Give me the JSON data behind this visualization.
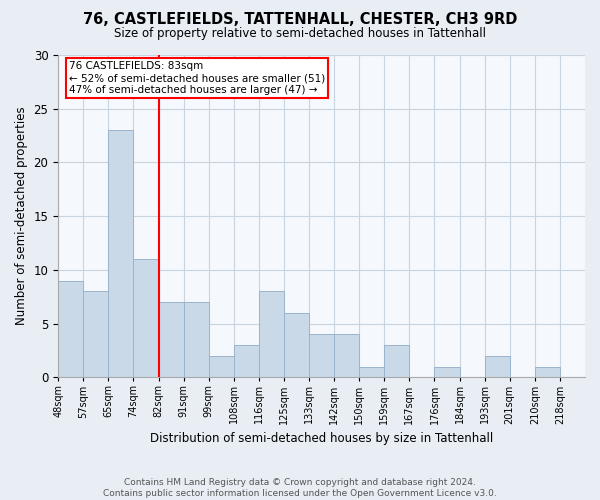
{
  "title": "76, CASTLEFIELDS, TATTENHALL, CHESTER, CH3 9RD",
  "subtitle": "Size of property relative to semi-detached houses in Tattenhall",
  "xlabel": "Distribution of semi-detached houses by size in Tattenhall",
  "ylabel": "Number of semi-detached properties",
  "footer_line1": "Contains HM Land Registry data © Crown copyright and database right 2024.",
  "footer_line2": "Contains public sector information licensed under the Open Government Licence v3.0.",
  "bin_labels": [
    "48sqm",
    "57sqm",
    "65sqm",
    "74sqm",
    "82sqm",
    "91sqm",
    "99sqm",
    "108sqm",
    "116sqm",
    "125sqm",
    "133sqm",
    "142sqm",
    "150sqm",
    "159sqm",
    "167sqm",
    "176sqm",
    "184sqm",
    "193sqm",
    "201sqm",
    "210sqm",
    "218sqm"
  ],
  "counts": [
    9,
    8,
    23,
    11,
    7,
    7,
    2,
    3,
    8,
    6,
    4,
    4,
    1,
    3,
    0,
    1,
    0,
    2,
    0,
    1,
    0
  ],
  "bar_color": "#c9d9e8",
  "bar_edge_color": "#9ab4cc",
  "marker_bin_index": 4,
  "marker_color": "red",
  "annotation_title": "76 CASTLEFIELDS: 83sqm",
  "annotation_line1": "← 52% of semi-detached houses are smaller (51)",
  "annotation_line2": "47% of semi-detached houses are larger (47) →",
  "ylim": [
    0,
    30
  ],
  "yticks": [
    0,
    5,
    10,
    15,
    20,
    25,
    30
  ],
  "background_color": "#e8eef4",
  "plot_bg_color": "#f5f8fc",
  "grid_color": "#c8d4e0"
}
